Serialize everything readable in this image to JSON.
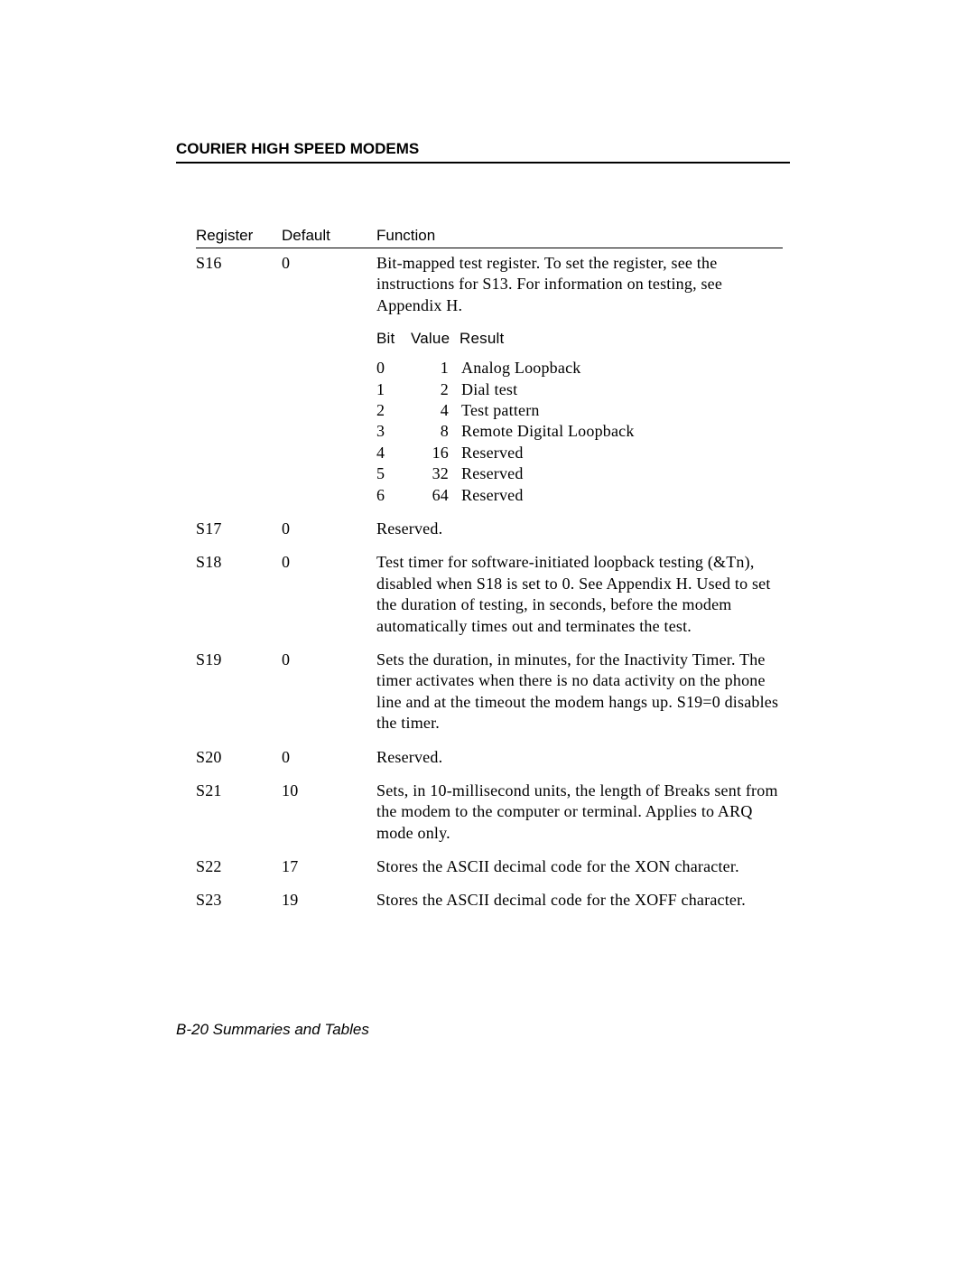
{
  "header_title": "COURIER HIGH SPEED MODEMS",
  "columns": {
    "register": "Register",
    "default": "Default",
    "function": "Function"
  },
  "s16": {
    "reg": "S16",
    "def": "0",
    "desc": "Bit-mapped test register.  To set the register, see the instructions for S13.  For information on testing, see Appendix H.",
    "bit_header": {
      "bit": "Bit",
      "value": "Value",
      "result": "Result"
    },
    "bits": [
      {
        "b": "0",
        "v": "1",
        "r": "Analog Loopback"
      },
      {
        "b": "1",
        "v": "2",
        "r": "Dial test"
      },
      {
        "b": "2",
        "v": "4",
        "r": "Test pattern"
      },
      {
        "b": "3",
        "v": "8",
        "r": "Remote Digital Loopback"
      },
      {
        "b": "4",
        "v": "16",
        "r": "Reserved"
      },
      {
        "b": "5",
        "v": "32",
        "r": "Reserved"
      },
      {
        "b": "6",
        "v": "64",
        "r": "Reserved"
      }
    ]
  },
  "rows": [
    {
      "reg": "S17",
      "def": "0",
      "fun": "Reserved."
    },
    {
      "reg": "S18",
      "def": "0",
      "fun": "Test timer for software-initiated loopback testing (&Tn), disabled when S18 is set to 0.  See Appendix H.  Used to set the duration of testing, in seconds, before the modem automatically times out and terminates the test."
    },
    {
      "reg": "S19",
      "def": "0",
      "fun": "Sets the duration, in minutes, for the Inactivity Timer.  The timer activates when there is no data activity on the phone line and at the timeout the modem hangs up.  S19=0 disables the timer."
    },
    {
      "reg": "S20",
      "def": "0",
      "fun": "Reserved."
    },
    {
      "reg": "S21",
      "def": "10",
      "fun": "Sets, in 10-millisecond units, the length of Breaks sent from the modem to the computer or terminal.  Applies to ARQ mode only."
    },
    {
      "reg": "S22",
      "def": "17",
      "fun": "Stores the ASCII decimal code for the XON character."
    },
    {
      "reg": "S23",
      "def": "19",
      "fun": "Stores the ASCII decimal code for the XOFF character."
    }
  ],
  "footer": "B-20    Summaries and Tables"
}
